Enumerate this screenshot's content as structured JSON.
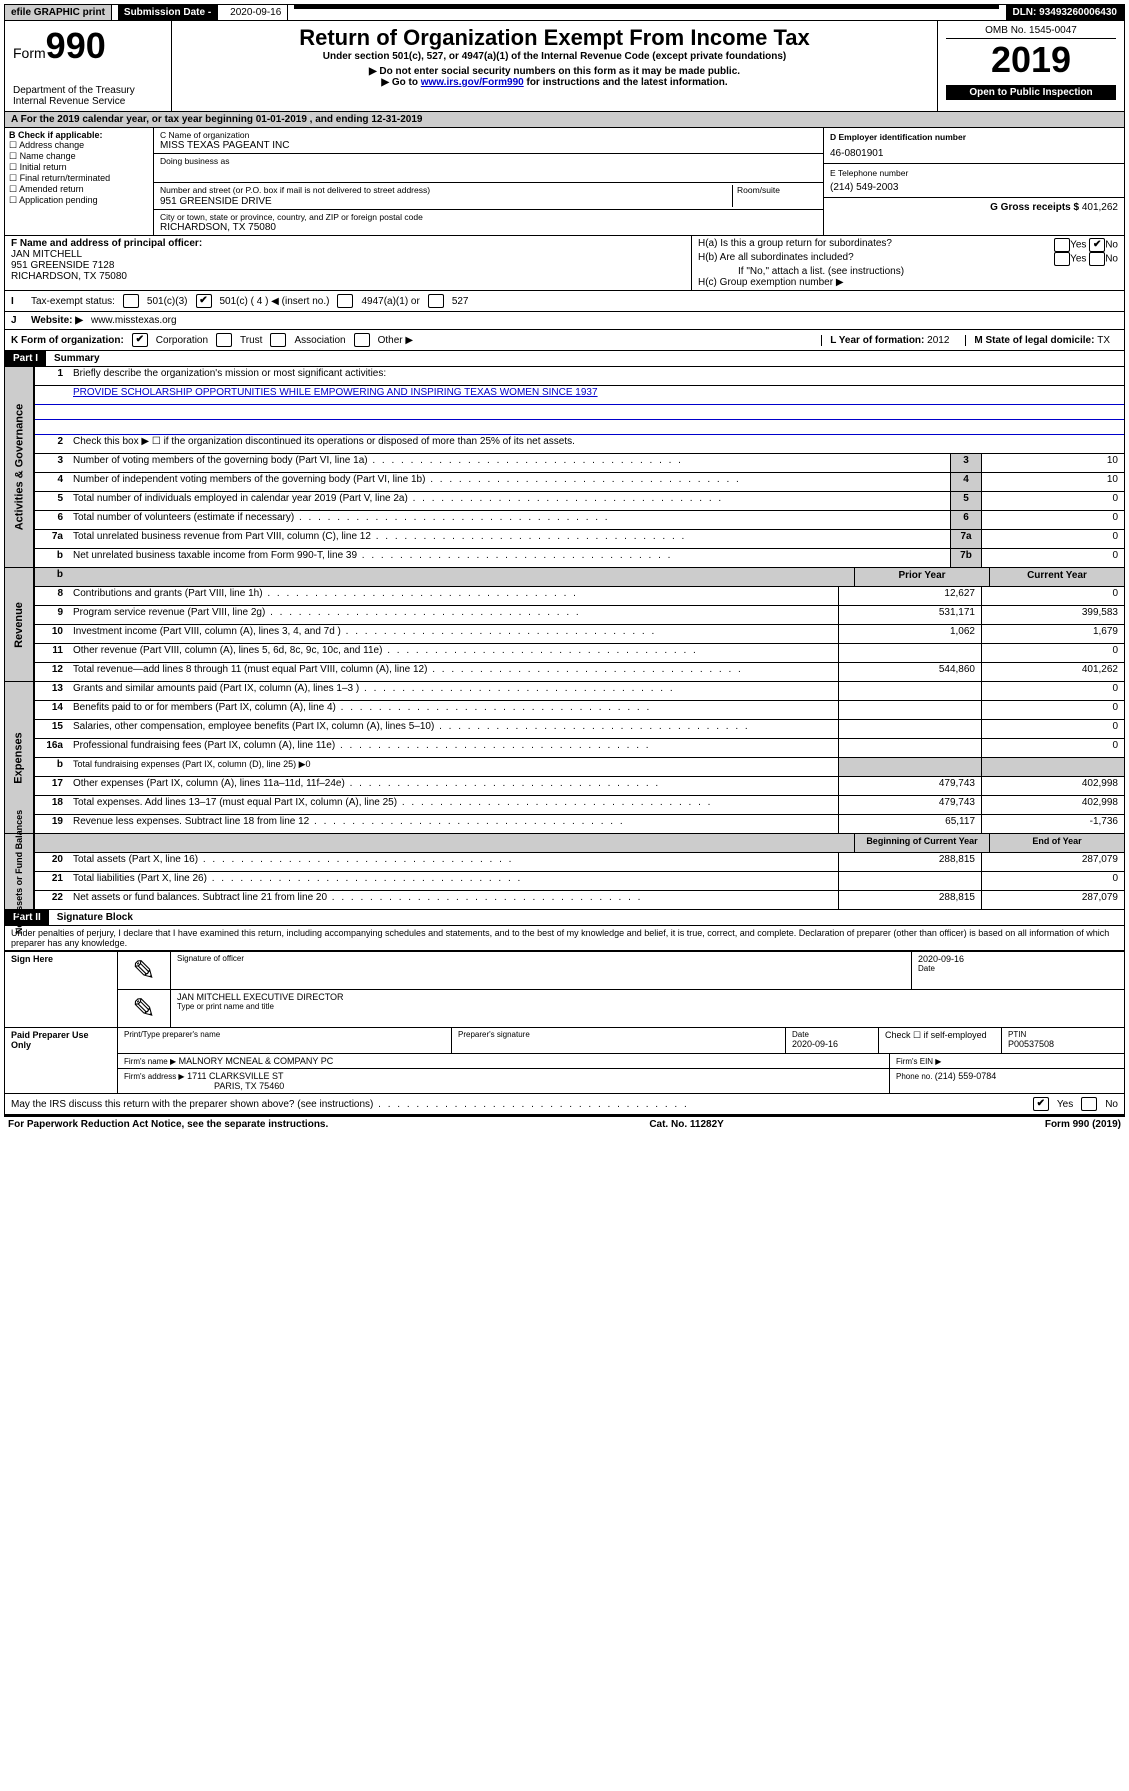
{
  "topbar": {
    "efile": "efile GRAPHIC print",
    "subdate_label": "Submission Date - ",
    "subdate": "2020-09-16",
    "dln": "DLN: 93493260006430"
  },
  "header": {
    "form_label": "Form",
    "form_number": "990",
    "dept1": "Department of the Treasury",
    "dept2": "Internal Revenue Service",
    "title": "Return of Organization Exempt From Income Tax",
    "subtitle": "Under section 501(c), 527, or 4947(a)(1) of the Internal Revenue Code (except private foundations)",
    "note1": "▶ Do not enter social security numbers on this form as it may be made public.",
    "note2_pre": "▶ Go to ",
    "note2_link": "www.irs.gov/Form990",
    "note2_post": " for instructions and the latest information.",
    "omb": "OMB No. 1545-0047",
    "year": "2019",
    "open": "Open to Public Inspection"
  },
  "rowA": "A For the 2019 calendar year, or tax year beginning 01-01-2019    , and ending 12-31-2019",
  "colB": {
    "title": "B Check if applicable:",
    "items": [
      "Address change",
      "Name change",
      "Initial return",
      "Final return/terminated",
      "Amended return",
      "Application pending"
    ]
  },
  "colC": {
    "name_lbl": "C Name of organization",
    "name": "MISS TEXAS PAGEANT INC",
    "dba_lbl": "Doing business as",
    "dba": "",
    "addr_lbl": "Number and street (or P.O. box if mail is not delivered to street address)",
    "room_lbl": "Room/suite",
    "addr": "951 GREENSIDE DRIVE",
    "city_lbl": "City or town, state or province, country, and ZIP or foreign postal code",
    "city": "RICHARDSON, TX  75080"
  },
  "colD": {
    "ein_lbl": "D Employer identification number",
    "ein": "46-0801901",
    "tel_lbl": "E Telephone number",
    "tel": "(214) 549-2003",
    "gross_lbl": "G Gross receipts $ ",
    "gross": "401,262"
  },
  "rowF": {
    "lbl": "F  Name and address of principal officer:",
    "name": "JAN MITCHELL",
    "addr1": "951 GREENSIDE 7128",
    "addr2": "RICHARDSON, TX  75080"
  },
  "rowH": {
    "a": "H(a)  Is this a group return for subordinates?",
    "b": "H(b)  Are all subordinates included?",
    "b_note": "If \"No,\" attach a list. (see instructions)",
    "c": "H(c)  Group exemption number ▶",
    "yes": "Yes",
    "no": "No"
  },
  "rowI": {
    "lbl": "Tax-exempt status:",
    "o1": "501(c)(3)",
    "o2": "501(c) ( 4 ) ◀ (insert no.)",
    "o3": "4947(a)(1) or",
    "o4": "527"
  },
  "rowJ": {
    "lbl": "J",
    "text": "Website: ▶",
    "val": "www.misstexas.org"
  },
  "rowK": {
    "lbl": "K Form of organization:",
    "o1": "Corporation",
    "o2": "Trust",
    "o3": "Association",
    "o4": "Other ▶",
    "L_lbl": "L Year of formation: ",
    "L_val": "2012",
    "M_lbl": "M State of legal domicile: ",
    "M_val": "TX"
  },
  "part1": {
    "hdr": "Part I",
    "title": "Summary",
    "q1": "Briefly describe the organization's mission or most significant activities:",
    "a1": "PROVIDE SCHOLARSHIP OPPORTUNITIES WHILE EMPOWERING AND INSPIRING TEXAS WOMEN SINCE 1937",
    "q2": "Check this box ▶ ☐  if the organization discontinued its operations or disposed of more than 25% of its net assets.",
    "lines": [
      {
        "n": "3",
        "t": "Number of voting members of the governing body (Part VI, line 1a)",
        "b": "3",
        "v2": "10"
      },
      {
        "n": "4",
        "t": "Number of independent voting members of the governing body (Part VI, line 1b)",
        "b": "4",
        "v2": "10"
      },
      {
        "n": "5",
        "t": "Total number of individuals employed in calendar year 2019 (Part V, line 2a)",
        "b": "5",
        "v2": "0"
      },
      {
        "n": "6",
        "t": "Total number of volunteers (estimate if necessary)",
        "b": "6",
        "v2": "0"
      },
      {
        "n": "7a",
        "t": "Total unrelated business revenue from Part VIII, column (C), line 12",
        "b": "7a",
        "v2": "0"
      },
      {
        "n": "b",
        "t": "Net unrelated business taxable income from Form 990-T, line 39",
        "b": "7b",
        "v2": "0"
      }
    ],
    "rev_hdr_prior": "Prior Year",
    "rev_hdr_cur": "Current Year",
    "rev": [
      {
        "n": "8",
        "t": "Contributions and grants (Part VIII, line 1h)",
        "v1": "12,627",
        "v2": "0"
      },
      {
        "n": "9",
        "t": "Program service revenue (Part VIII, line 2g)",
        "v1": "531,171",
        "v2": "399,583"
      },
      {
        "n": "10",
        "t": "Investment income (Part VIII, column (A), lines 3, 4, and 7d )",
        "v1": "1,062",
        "v2": "1,679"
      },
      {
        "n": "11",
        "t": "Other revenue (Part VIII, column (A), lines 5, 6d, 8c, 9c, 10c, and 11e)",
        "v1": "",
        "v2": "0"
      },
      {
        "n": "12",
        "t": "Total revenue—add lines 8 through 11 (must equal Part VIII, column (A), line 12)",
        "v1": "544,860",
        "v2": "401,262"
      }
    ],
    "exp": [
      {
        "n": "13",
        "t": "Grants and similar amounts paid (Part IX, column (A), lines 1–3 )",
        "v1": "",
        "v2": "0"
      },
      {
        "n": "14",
        "t": "Benefits paid to or for members (Part IX, column (A), line 4)",
        "v1": "",
        "v2": "0"
      },
      {
        "n": "15",
        "t": "Salaries, other compensation, employee benefits (Part IX, column (A), lines 5–10)",
        "v1": "",
        "v2": "0"
      },
      {
        "n": "16a",
        "t": "Professional fundraising fees (Part IX, column (A), line 11e)",
        "v1": "",
        "v2": "0"
      },
      {
        "n": "b",
        "t": "Total fundraising expenses (Part IX, column (D), line 25) ▶0",
        "v1": "—",
        "v2": "—"
      },
      {
        "n": "17",
        "t": "Other expenses (Part IX, column (A), lines 11a–11d, 11f–24e)",
        "v1": "479,743",
        "v2": "402,998"
      },
      {
        "n": "18",
        "t": "Total expenses. Add lines 13–17 (must equal Part IX, column (A), line 25)",
        "v1": "479,743",
        "v2": "402,998"
      },
      {
        "n": "19",
        "t": "Revenue less expenses. Subtract line 18 from line 12",
        "v1": "65,117",
        "v2": "-1,736"
      }
    ],
    "na_hdr1": "Beginning of Current Year",
    "na_hdr2": "End of Year",
    "na": [
      {
        "n": "20",
        "t": "Total assets (Part X, line 16)",
        "v1": "288,815",
        "v2": "287,079"
      },
      {
        "n": "21",
        "t": "Total liabilities (Part X, line 26)",
        "v1": "",
        "v2": "0"
      },
      {
        "n": "22",
        "t": "Net assets or fund balances. Subtract line 21 from line 20",
        "v1": "288,815",
        "v2": "287,079"
      }
    ],
    "vlabels": {
      "gov": "Activities & Governance",
      "rev": "Revenue",
      "exp": "Expenses",
      "na": "Net Assets or\nFund Balances"
    }
  },
  "part2": {
    "hdr": "Part II",
    "title": "Signature Block",
    "decl": "Under penalties of perjury, I declare that I have examined this return, including accompanying schedules and statements, and to the best of my knowledge and belief, it is true, correct, and complete. Declaration of preparer (other than officer) is based on all information of which preparer has any knowledge.",
    "sign_here": "Sign Here",
    "sig_officer": "Signature of officer",
    "date_lbl": "Date",
    "date": "2020-09-16",
    "officer_name": "JAN MITCHELL  EXECUTIVE DIRECTOR",
    "type_name": "Type or print name and title",
    "paid": "Paid Preparer Use Only",
    "prep_name_lbl": "Print/Type preparer's name",
    "prep_name": "",
    "prep_sig_lbl": "Preparer's signature",
    "prep_date_lbl": "Date",
    "prep_date": "2020-09-16",
    "check_self": "Check ☐ if self-employed",
    "ptin_lbl": "PTIN",
    "ptin": "P00537508",
    "firm_name_lbl": "Firm's name  ▶",
    "firm_name": "MALNORY MCNEAL & COMPANY PC",
    "firm_ein_lbl": "Firm's EIN ▶",
    "firm_ein": "",
    "firm_addr_lbl": "Firm's address ▶",
    "firm_addr1": "1711 CLARKSVILLE ST",
    "firm_addr2": "PARIS, TX  75460",
    "phone_lbl": "Phone no. ",
    "phone": "(214) 559-0784",
    "irs_q": "May the IRS discuss this return with the preparer shown above? (see instructions)",
    "yes": "Yes",
    "no": "No"
  },
  "footer": {
    "l": "For Paperwork Reduction Act Notice, see the separate instructions.",
    "m": "Cat. No. 11282Y",
    "r": "Form 990 (2019)"
  },
  "colors": {
    "link": "#0000cc",
    "gray": "#cccccc",
    "black": "#000000"
  }
}
